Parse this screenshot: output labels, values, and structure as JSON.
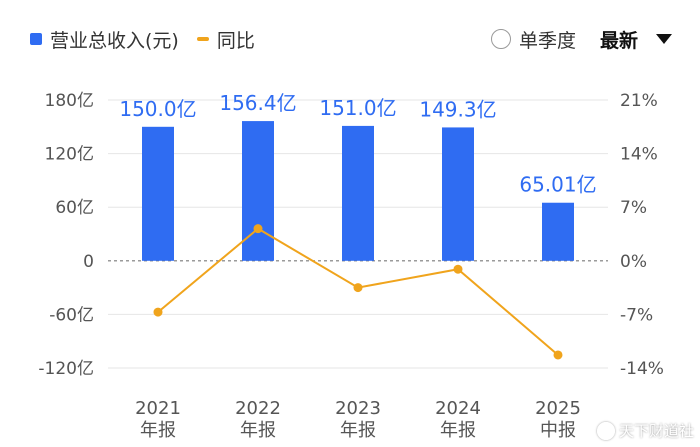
{
  "legend": {
    "items": [
      {
        "label": "营业总收入(元)",
        "kind": "bar",
        "color": "#2f6cf2"
      },
      {
        "label": "同比",
        "kind": "line",
        "color": "#f0a41c"
      }
    ]
  },
  "controls": {
    "single_quarter_label": "单季度",
    "single_quarter_checked": false,
    "period_select_label": "最新"
  },
  "watermark": {
    "text": "天下财道社"
  },
  "chart_data": {
    "type": "bar",
    "categories": [
      [
        "2021",
        "年报"
      ],
      [
        "2022",
        "年报"
      ],
      [
        "2023",
        "年报"
      ],
      [
        "2024",
        "年报"
      ],
      [
        "2025",
        "中报"
      ]
    ],
    "series": [
      {
        "name": "营业总收入(元)",
        "type": "bar",
        "axis": "left",
        "color": "#2f6cf2",
        "values": [
          150.0,
          156.4,
          151.0,
          149.3,
          65.01
        ],
        "labels": [
          "150.0亿",
          "156.4亿",
          "151.0亿",
          "149.3亿",
          "65.01亿"
        ]
      },
      {
        "name": "同比",
        "type": "line",
        "axis": "right",
        "color": "#f0a41c",
        "values": [
          -6.7,
          4.2,
          -3.5,
          -1.1,
          -12.3
        ]
      }
    ],
    "y_left": {
      "ylim": [
        -120,
        180
      ],
      "ticks": [
        180,
        120,
        60,
        0,
        -60,
        -120
      ],
      "tick_labels": [
        "180亿",
        "120亿",
        "60亿",
        "0",
        "-60亿",
        "-120亿"
      ]
    },
    "y_right": {
      "ylim": [
        -14,
        21
      ],
      "ticks": [
        21,
        14,
        7,
        0,
        -7,
        -14
      ],
      "tick_labels": [
        "21%",
        "14%",
        "7%",
        "0%",
        "-7%",
        "-14%"
      ]
    },
    "grid": true,
    "zero_line": "dashed"
  }
}
